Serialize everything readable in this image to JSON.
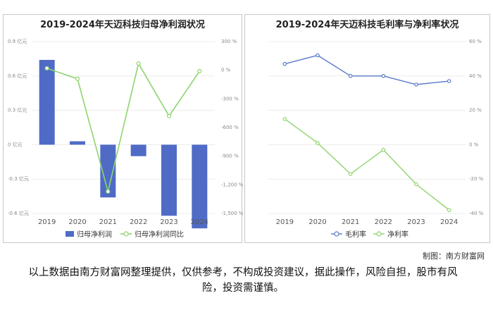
{
  "credit": "制图：南方财富网",
  "disclaimer": "以上数据由南方财富网整理提供，仅供参考，不构成投资建议，据此操作，风险自担，股市有风险，投资需谨慎。",
  "chart_data": [
    {
      "type": "bar",
      "title": "2019-2024年天迈科技归母净利润状况",
      "categories": [
        "2019",
        "2020",
        "2021",
        "2022",
        "2023",
        "2024"
      ],
      "series": [
        {
          "name": "归母净利润",
          "type": "bar",
          "axis": "left",
          "color": "#4f6bc6",
          "values": [
            0.74,
            0.03,
            -0.46,
            -0.1,
            -0.62,
            -0.73
          ]
        },
        {
          "name": "归母净利润同比",
          "type": "line",
          "axis": "right",
          "color": "#8ed46e",
          "values": [
            20,
            -90,
            -1270,
            70,
            -480,
            -10
          ]
        }
      ],
      "y_left": {
        "min": -0.6,
        "max": 0.9,
        "ticks": [
          0.9,
          0.6,
          0.3,
          0,
          -0.3,
          -0.6
        ],
        "labels": [
          "0.9 亿元",
          "0.6 亿元",
          "0.3 亿元",
          "0 亿元",
          "-0.3 亿元",
          "-0.6 亿元"
        ]
      },
      "y_right": {
        "min": -1500,
        "max": 300,
        "ticks": [
          300,
          0,
          -300,
          -600,
          -900,
          -1200,
          -1500
        ],
        "labels": [
          "300 %",
          "0 %",
          "-300 %",
          "-600 %",
          "-900 %",
          "-1,200 %",
          "-1,500 %"
        ]
      },
      "legend": "bottom"
    },
    {
      "type": "line",
      "title": "2019-2024年天迈科技毛利率与净利率状况",
      "categories": [
        "2019",
        "2020",
        "2021",
        "2022",
        "2023",
        "2024"
      ],
      "series": [
        {
          "name": "毛利率",
          "color": "#5a79c8",
          "values": [
            47,
            52,
            40,
            40,
            35,
            37
          ]
        },
        {
          "name": "净利率",
          "color": "#8ed46e",
          "values": [
            15,
            1,
            -17,
            -3,
            -23,
            -38
          ]
        }
      ],
      "y_right": {
        "min": -40,
        "max": 60,
        "ticks": [
          60,
          40,
          20,
          0,
          -20,
          -40
        ],
        "labels": [
          "60 %",
          "40 %",
          "20 %",
          "0 %",
          "-20 %",
          "-40 %"
        ]
      },
      "legend": "bottom"
    }
  ]
}
